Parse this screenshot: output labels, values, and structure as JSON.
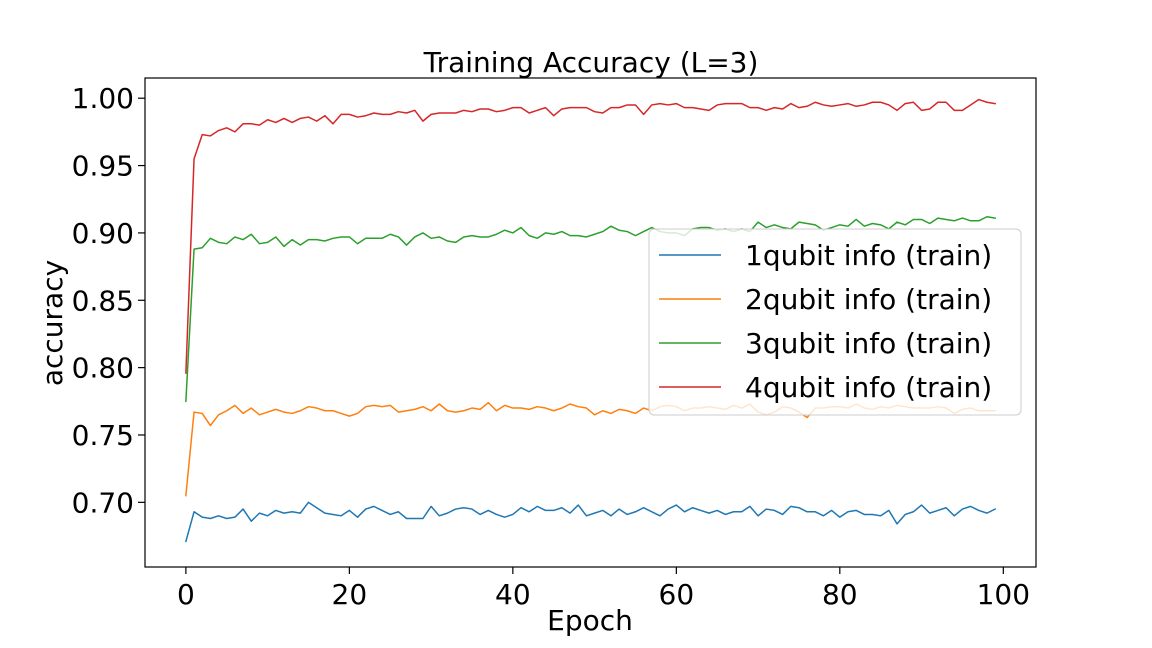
{
  "chart_data": {
    "type": "line",
    "title": "Training Accuracy (L=3)",
    "xlabel": "Epoch",
    "ylabel": "accuracy",
    "xlim": [
      -5,
      104
    ],
    "ylim": [
      0.652,
      1.015
    ],
    "xticks": [
      0,
      20,
      40,
      60,
      80,
      100
    ],
    "xtick_labels": [
      "0",
      "20",
      "40",
      "60",
      "80",
      "100"
    ],
    "yticks": [
      0.7,
      0.75,
      0.8,
      0.85,
      0.9,
      0.95,
      1.0
    ],
    "ytick_labels": [
      "0.70",
      "0.75",
      "0.80",
      "0.85",
      "0.90",
      "0.95",
      "1.00"
    ],
    "grid": false,
    "legend_position": "center-right",
    "series": [
      {
        "name": "1qubit info (train)",
        "color": "#1f77b4",
        "values": [
          0.671,
          0.693,
          0.689,
          0.688,
          0.69,
          0.688,
          0.689,
          0.695,
          0.686,
          0.692,
          0.69,
          0.694,
          0.692,
          0.693,
          0.692,
          0.7,
          0.696,
          0.692,
          0.691,
          0.69,
          0.694,
          0.689,
          0.695,
          0.697,
          0.694,
          0.691,
          0.693,
          0.688,
          0.688,
          0.688,
          0.697,
          0.69,
          0.692,
          0.695,
          0.696,
          0.695,
          0.691,
          0.694,
          0.691,
          0.689,
          0.691,
          0.696,
          0.693,
          0.697,
          0.694,
          0.694,
          0.696,
          0.692,
          0.698,
          0.69,
          0.692,
          0.694,
          0.69,
          0.695,
          0.691,
          0.693,
          0.696,
          0.693,
          0.69,
          0.695,
          0.698,
          0.693,
          0.696,
          0.694,
          0.692,
          0.694,
          0.691,
          0.693,
          0.693,
          0.697,
          0.69,
          0.695,
          0.694,
          0.691,
          0.697,
          0.696,
          0.693,
          0.693,
          0.69,
          0.694,
          0.689,
          0.693,
          0.694,
          0.691,
          0.691,
          0.69,
          0.694,
          0.684,
          0.691,
          0.693,
          0.698,
          0.692,
          0.694,
          0.696,
          0.69,
          0.695,
          0.697,
          0.694,
          0.692,
          0.695
        ]
      },
      {
        "name": "2qubit info (train)",
        "color": "#ff7f0e",
        "values": [
          0.705,
          0.767,
          0.766,
          0.757,
          0.765,
          0.768,
          0.772,
          0.766,
          0.77,
          0.765,
          0.767,
          0.769,
          0.767,
          0.766,
          0.768,
          0.771,
          0.77,
          0.768,
          0.768,
          0.766,
          0.764,
          0.766,
          0.771,
          0.772,
          0.771,
          0.772,
          0.767,
          0.768,
          0.769,
          0.771,
          0.768,
          0.773,
          0.768,
          0.767,
          0.768,
          0.77,
          0.769,
          0.774,
          0.768,
          0.772,
          0.77,
          0.77,
          0.769,
          0.771,
          0.77,
          0.768,
          0.77,
          0.773,
          0.771,
          0.77,
          0.765,
          0.768,
          0.766,
          0.769,
          0.768,
          0.766,
          0.77,
          0.768,
          0.771,
          0.772,
          0.771,
          0.768,
          0.77,
          0.77,
          0.771,
          0.77,
          0.769,
          0.772,
          0.77,
          0.773,
          0.767,
          0.765,
          0.767,
          0.771,
          0.77,
          0.767,
          0.763,
          0.77,
          0.77,
          0.771,
          0.771,
          0.77,
          0.773,
          0.77,
          0.769,
          0.771,
          0.77,
          0.772,
          0.771,
          0.77,
          0.77,
          0.77,
          0.771,
          0.77,
          0.766,
          0.769,
          0.77,
          0.768,
          0.768,
          0.768
        ]
      },
      {
        "name": "3qubit info (train)",
        "color": "#2ca02c",
        "values": [
          0.775,
          0.888,
          0.889,
          0.896,
          0.893,
          0.892,
          0.897,
          0.895,
          0.899,
          0.892,
          0.893,
          0.897,
          0.89,
          0.895,
          0.891,
          0.895,
          0.895,
          0.894,
          0.896,
          0.897,
          0.897,
          0.892,
          0.896,
          0.896,
          0.896,
          0.899,
          0.897,
          0.891,
          0.897,
          0.9,
          0.896,
          0.897,
          0.894,
          0.893,
          0.897,
          0.898,
          0.897,
          0.897,
          0.899,
          0.902,
          0.9,
          0.904,
          0.898,
          0.896,
          0.9,
          0.899,
          0.901,
          0.898,
          0.898,
          0.897,
          0.899,
          0.901,
          0.905,
          0.902,
          0.901,
          0.898,
          0.901,
          0.904,
          0.901,
          0.9,
          0.9,
          0.898,
          0.903,
          0.904,
          0.904,
          0.902,
          0.903,
          0.901,
          0.903,
          0.901,
          0.908,
          0.904,
          0.906,
          0.904,
          0.903,
          0.908,
          0.907,
          0.906,
          0.902,
          0.904,
          0.906,
          0.905,
          0.91,
          0.905,
          0.907,
          0.906,
          0.903,
          0.908,
          0.906,
          0.91,
          0.91,
          0.907,
          0.911,
          0.91,
          0.909,
          0.911,
          0.909,
          0.909,
          0.912,
          0.911
        ]
      },
      {
        "name": "4qubit info (train)",
        "color": "#d62728",
        "values": [
          0.796,
          0.955,
          0.973,
          0.972,
          0.976,
          0.978,
          0.975,
          0.981,
          0.981,
          0.98,
          0.984,
          0.982,
          0.985,
          0.982,
          0.985,
          0.986,
          0.983,
          0.987,
          0.981,
          0.988,
          0.988,
          0.986,
          0.987,
          0.989,
          0.988,
          0.988,
          0.99,
          0.989,
          0.991,
          0.983,
          0.988,
          0.989,
          0.989,
          0.989,
          0.991,
          0.99,
          0.992,
          0.992,
          0.99,
          0.991,
          0.993,
          0.993,
          0.989,
          0.991,
          0.993,
          0.987,
          0.992,
          0.993,
          0.993,
          0.993,
          0.99,
          0.989,
          0.993,
          0.993,
          0.995,
          0.995,
          0.988,
          0.995,
          0.996,
          0.995,
          0.996,
          0.993,
          0.993,
          0.992,
          0.991,
          0.995,
          0.996,
          0.996,
          0.996,
          0.993,
          0.993,
          0.991,
          0.993,
          0.992,
          0.996,
          0.993,
          0.994,
          0.997,
          0.995,
          0.994,
          0.995,
          0.996,
          0.994,
          0.995,
          0.997,
          0.997,
          0.995,
          0.991,
          0.996,
          0.997,
          0.991,
          0.992,
          0.997,
          0.997,
          0.991,
          0.991,
          0.995,
          0.999,
          0.997,
          0.996
        ]
      }
    ]
  }
}
